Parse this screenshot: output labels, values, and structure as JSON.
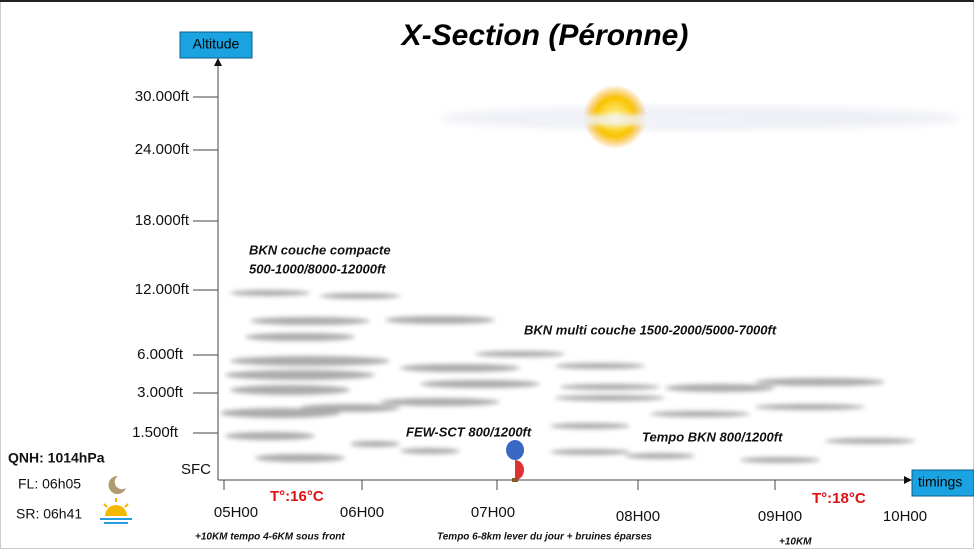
{
  "title": "X-Section (Péronne)",
  "axes": {
    "y_label": "Altitude",
    "x_label": "timings"
  },
  "altitude_labels": [
    "30.000ft",
    "24.000ft",
    "18.000ft",
    "12.000ft",
    "6.000ft",
    "3.000ft",
    "1.500ft",
    "SFC"
  ],
  "time_labels": [
    "05H00",
    "06H00",
    "07H00",
    "08H00",
    "09H00",
    "10H00"
  ],
  "annotations": {
    "bkn_compact_1": "BKN  couche compacte",
    "bkn_compact_2": "500-1000/8000-12000ft",
    "bkn_multi": "BKN  multi couche 1500-2000/5000-7000ft",
    "few_sct": "FEW-SCT 800/1200ft",
    "tempo_bkn": "Tempo BKN 800/1200ft"
  },
  "temperatures": [
    "T°:16°C",
    "T°:18°C"
  ],
  "notes": [
    "+10KM tempo 4-6KM sous front",
    "Tempo 6-8km lever du jour + bruines éparses",
    "+10KM"
  ],
  "info": {
    "qnh": "QNH: 1014hPa",
    "fl": "FL: 06h05",
    "sr": "SR: 06h41"
  }
}
